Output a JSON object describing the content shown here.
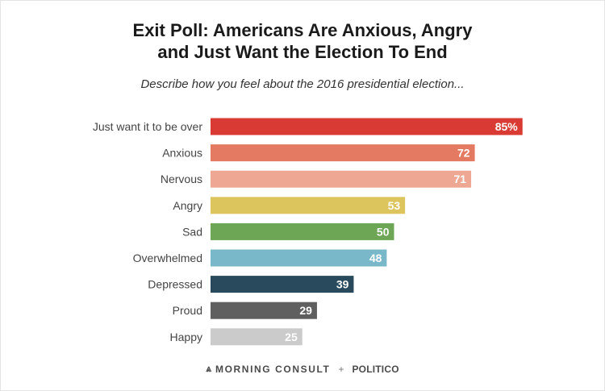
{
  "title_line1": "Exit Poll: Americans Are Anxious, Angry",
  "title_line2": "and Just Want the Election To End",
  "subtitle": "Describe how you feel about the 2016 presidential election...",
  "chart_data": {
    "type": "bar",
    "orientation": "horizontal",
    "categories": [
      "Just want it to be over",
      "Anxious",
      "Nervous",
      "Angry",
      "Sad",
      "Overwhelmed",
      "Depressed",
      "Proud",
      "Happy"
    ],
    "values": [
      85,
      72,
      71,
      53,
      50,
      48,
      39,
      29,
      25
    ],
    "value_labels": [
      "85%",
      "72",
      "71",
      "53",
      "50",
      "48",
      "39",
      "29",
      "25"
    ],
    "colors": [
      "#d93a34",
      "#e47a62",
      "#eda792",
      "#ddc55e",
      "#6da655",
      "#79b8c8",
      "#284a5c",
      "#5f5f5f",
      "#cbcbcb"
    ],
    "xlim": [
      0,
      100
    ],
    "grid": false,
    "legend": "none"
  },
  "footer": {
    "icon": "morning-consult-logo-icon",
    "brand1": "MORNING CONSULT",
    "plus": "+",
    "brand2": "POLITICO"
  }
}
